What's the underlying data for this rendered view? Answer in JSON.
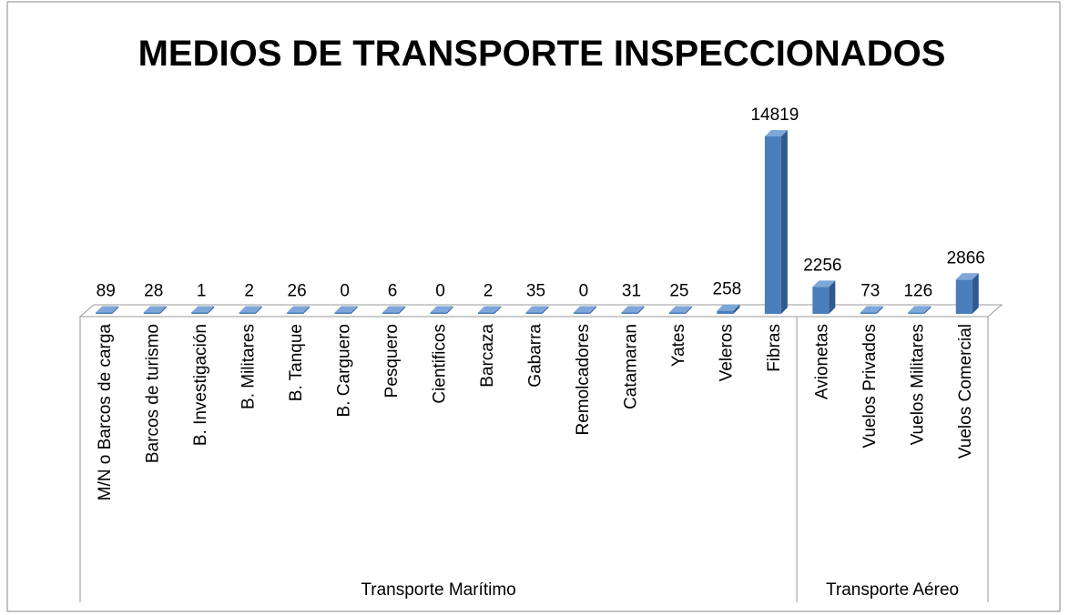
{
  "chart_data": {
    "type": "bar3d",
    "title": "MEDIOS DE TRANSPORTE INSPECCIONADOS",
    "color": "#4a7ebb",
    "groups": [
      {
        "name": "Transporte Marítimo",
        "categories": [
          "M/N o Barcos de carga",
          "Barcos de turismo",
          "B. Investigación",
          "B. Militares",
          "B. Tanque",
          "B. Carguero",
          "Pesquero",
          "Cientificos",
          "Barcaza",
          "Gabarra",
          "Remolcadores",
          "Catamaran",
          "Yates",
          "Veleros",
          "Fibras"
        ],
        "values": [
          89,
          28,
          1,
          2,
          26,
          0,
          6,
          0,
          2,
          35,
          0,
          31,
          25,
          258,
          14819
        ]
      },
      {
        "name": "Transporte Aéreo",
        "categories": [
          "Avionetas",
          "Vuelos Privados",
          "Vuelos Militares",
          "Vuelos Comercial"
        ],
        "values": [
          2256,
          73,
          126,
          2866
        ]
      }
    ]
  }
}
